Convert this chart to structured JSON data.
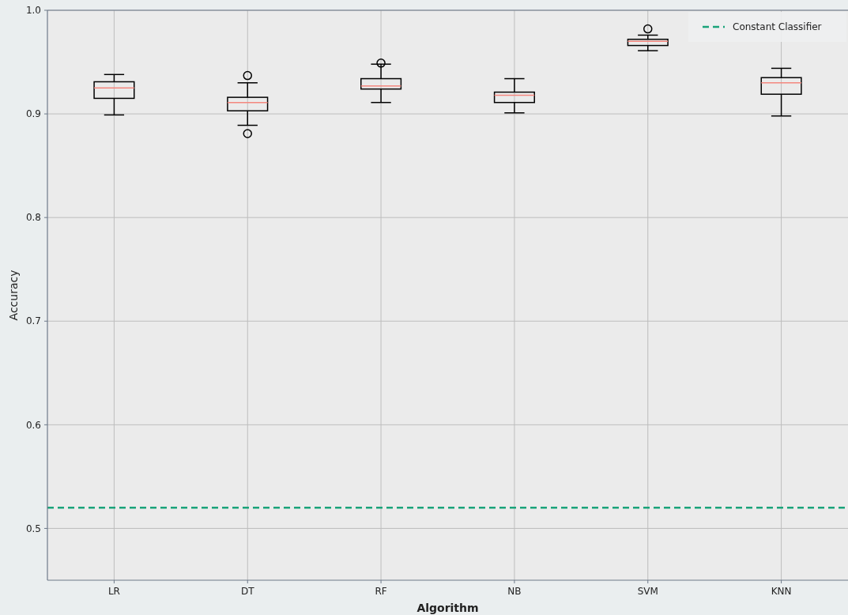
{
  "chart_data": {
    "type": "box",
    "xlabel": "Algorithm",
    "ylabel": "Accuracy",
    "categories": [
      "LR",
      "DT",
      "RF",
      "NB",
      "SVM",
      "KNN"
    ],
    "boxes": [
      {
        "low": 0.899,
        "q1": 0.915,
        "median": 0.925,
        "q3": 0.931,
        "high": 0.938
      },
      {
        "low": 0.889,
        "q1": 0.903,
        "median": 0.911,
        "q3": 0.916,
        "high": 0.93,
        "outliers": [
          0.937,
          0.881
        ]
      },
      {
        "low": 0.911,
        "q1": 0.924,
        "median": 0.927,
        "q3": 0.934,
        "high": 0.948,
        "outliers": [
          0.949
        ]
      },
      {
        "low": 0.901,
        "q1": 0.911,
        "median": 0.918,
        "q3": 0.921,
        "high": 0.934
      },
      {
        "low": 0.961,
        "q1": 0.966,
        "median": 0.97,
        "q3": 0.972,
        "high": 0.976,
        "outliers": [
          0.982
        ]
      },
      {
        "low": 0.898,
        "q1": 0.919,
        "median": 0.93,
        "q3": 0.935,
        "high": 0.944
      }
    ],
    "ylim": [
      0.45,
      1.0
    ],
    "yticks": [
      0.5,
      0.6,
      0.7,
      0.8,
      0.9,
      {
        "value": 1.0,
        "label": "1.0"
      }
    ],
    "ref_lines": [
      {
        "axis": "y",
        "value": 0.52,
        "label": "Constant Classifier",
        "color": "#1aa37a",
        "line_style": "dashed"
      }
    ],
    "grid": true,
    "legend": "top right"
  }
}
